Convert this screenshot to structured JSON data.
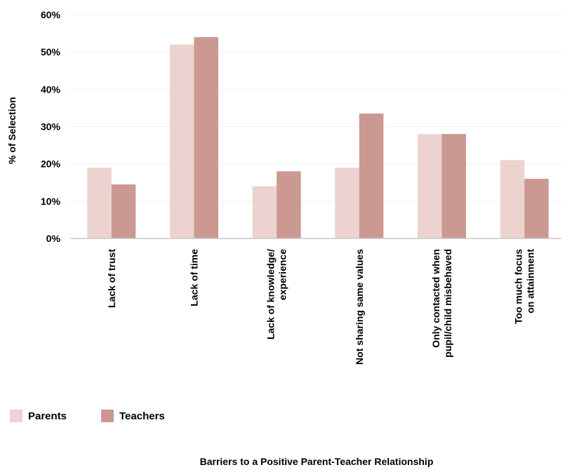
{
  "chart_data": {
    "type": "bar",
    "title": "Barriers to a Positive Parent-Teacher Relationship",
    "xlabel": "",
    "ylabel": "% of Selection",
    "ylim": [
      0,
      60
    ],
    "yticks": [
      0,
      10,
      20,
      30,
      40,
      50,
      60
    ],
    "ytick_suffix": "%",
    "grid": true,
    "legend_position": "bottom-left",
    "categories": [
      [
        "Lack of trust"
      ],
      [
        "Lack of time"
      ],
      [
        "Lack of knowledge/",
        "experience"
      ],
      [
        "Not sharing same values"
      ],
      [
        "Only contacted when",
        "pupil/child misbehaved"
      ],
      [
        "Too much focus",
        "on attainment"
      ]
    ],
    "series": [
      {
        "name": "Parents",
        "color": "#ecd3cf",
        "values": [
          19,
          52,
          14,
          19,
          28,
          21
        ]
      },
      {
        "name": "Teachers",
        "color": "#cc9892",
        "values": [
          14.5,
          54,
          18,
          33.5,
          28,
          16
        ]
      }
    ]
  }
}
